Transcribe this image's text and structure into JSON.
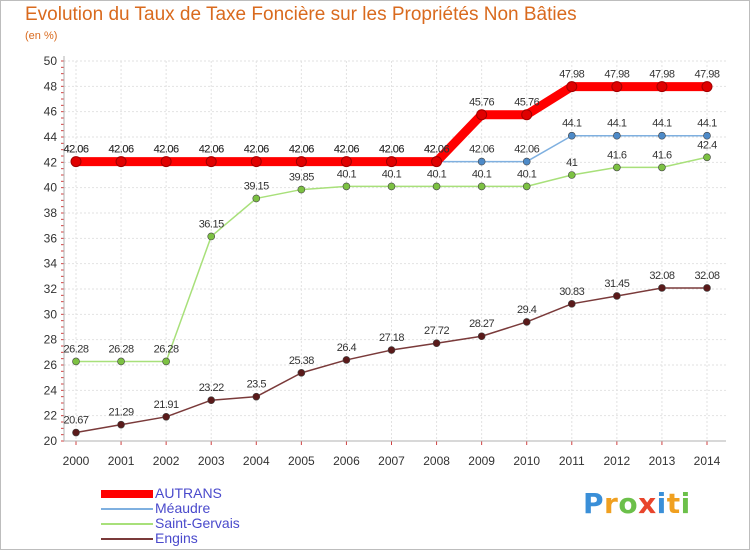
{
  "title": "Evolution du Taux de Taxe Foncière sur les Propriétés Non Bâties",
  "unit_label": "(en %)",
  "logo": {
    "text": "Proxiti",
    "letters": [
      {
        "ch": "P",
        "color": "#3a8fd8"
      },
      {
        "ch": "r",
        "color": "#f0a020"
      },
      {
        "ch": "o",
        "color": "#6cc04a"
      },
      {
        "ch": "x",
        "color": "#e8452c"
      },
      {
        "ch": "i",
        "color": "#3a8fd8"
      },
      {
        "ch": "t",
        "color": "#f0a020"
      },
      {
        "ch": "i",
        "color": "#6cc04a"
      }
    ]
  },
  "chart_data": {
    "type": "line",
    "title": "Evolution du Taux de Taxe Foncière sur les Propriétés Non Bâties",
    "xlabel": "",
    "ylabel": "(en %)",
    "x": [
      "2000",
      "2001",
      "2002",
      "2003",
      "2004",
      "2005",
      "2006",
      "2007",
      "2008",
      "2009",
      "2010",
      "2011",
      "2012",
      "2013",
      "2014"
    ],
    "ylim": [
      20,
      50
    ],
    "yticks": [
      20,
      22,
      24,
      26,
      28,
      30,
      32,
      34,
      36,
      38,
      40,
      42,
      44,
      46,
      48,
      50
    ],
    "grid": true,
    "legend_position": "bottom-left",
    "series": [
      {
        "name": "AUTRANS",
        "color": "#ff0000",
        "emphasis": true,
        "values": [
          42.06,
          42.06,
          42.06,
          42.06,
          42.06,
          42.06,
          42.06,
          42.06,
          42.06,
          45.76,
          45.76,
          47.98,
          47.98,
          47.98,
          47.98
        ],
        "labels": [
          "42.06",
          "42.06",
          "42.06",
          "42.06",
          "42.06",
          "42.06",
          "42.06",
          "42.06",
          "42.06",
          "45.76",
          "45.76",
          "47.98",
          "47.98",
          "47.98",
          "47.98"
        ]
      },
      {
        "name": "Méaudre",
        "color": "#7fb0e0",
        "marker": "#4d8ac8",
        "values": [
          42.06,
          42.06,
          42.06,
          42.06,
          42.06,
          42.06,
          42.06,
          42.06,
          42.06,
          42.06,
          42.06,
          44.1,
          44.1,
          44.1,
          44.1
        ],
        "labels": [
          "42.06",
          "42.06",
          "42.06",
          "42.06",
          "42.06",
          "42.06",
          "42.06",
          "42.06",
          "42.06",
          "42.06",
          "42.06",
          "44.1",
          "44.1",
          "44.1",
          "44.1"
        ]
      },
      {
        "name": "Saint-Gervais",
        "color": "#a8e07a",
        "marker": "#7cc142",
        "values": [
          26.28,
          26.28,
          26.28,
          36.15,
          39.15,
          39.85,
          40.1,
          40.1,
          40.1,
          40.1,
          40.1,
          41,
          41.6,
          41.6,
          42.4
        ],
        "labels": [
          "26.28",
          "26.28",
          "26.28",
          "36.15",
          "39.15",
          "39.85",
          "40.1",
          "40.1",
          "40.1",
          "40.1",
          "40.1",
          "41",
          "41.6",
          "41.6",
          "42.4"
        ]
      },
      {
        "name": "Engins",
        "color": "#7a3a3a",
        "marker": "#5a1a1a",
        "values": [
          20.67,
          21.29,
          21.91,
          23.22,
          23.5,
          25.38,
          26.4,
          27.18,
          27.72,
          28.27,
          29.4,
          30.83,
          31.45,
          32.08,
          32.08
        ],
        "labels": [
          "20.67",
          "21.29",
          "21.91",
          "23.22",
          "23.5",
          "25.38",
          "26.4",
          "27.18",
          "27.72",
          "28.27",
          "29.4",
          "30.83",
          "31.45",
          "32.08",
          "32.08"
        ]
      }
    ]
  }
}
